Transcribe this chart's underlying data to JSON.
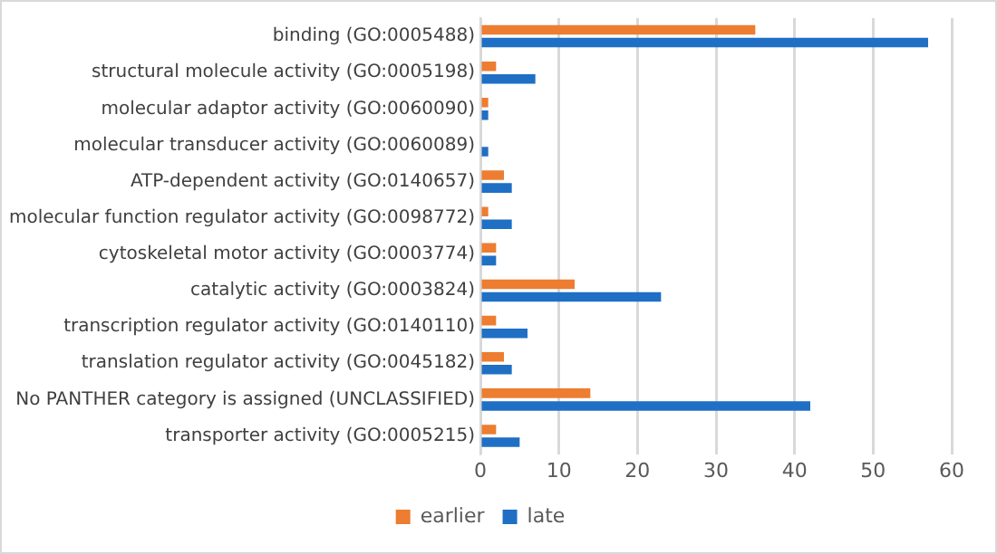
{
  "chart_data": {
    "type": "bar",
    "orientation": "horizontal",
    "categories": [
      "binding (GO:0005488)",
      "structural molecule activity (GO:0005198)",
      "molecular adaptor activity (GO:0060090)",
      "molecular transducer activity (GO:0060089)",
      "ATP-dependent activity (GO:0140657)",
      "molecular function regulator activity (GO:0098772)",
      "cytoskeletal motor activity (GO:0003774)",
      "catalytic activity (GO:0003824)",
      "transcription regulator activity (GO:0140110)",
      "translation regulator activity (GO:0045182)",
      "No PANTHER category is assigned (UNCLASSIFIED)",
      "transporter activity (GO:0005215)"
    ],
    "series": [
      {
        "name": "earlier",
        "color": "#ed7d31",
        "values": [
          35,
          2,
          1,
          0,
          3,
          1,
          2,
          12,
          2,
          3,
          14,
          2
        ]
      },
      {
        "name": "late",
        "color": "#1f6fc5",
        "values": [
          57,
          7,
          1,
          1,
          4,
          4,
          2,
          23,
          6,
          4,
          42,
          5
        ]
      }
    ],
    "xlim": [
      0,
      60
    ],
    "xticks": [
      0,
      10,
      20,
      30,
      40,
      50,
      60
    ],
    "grid": "x",
    "legend": "bottom"
  }
}
